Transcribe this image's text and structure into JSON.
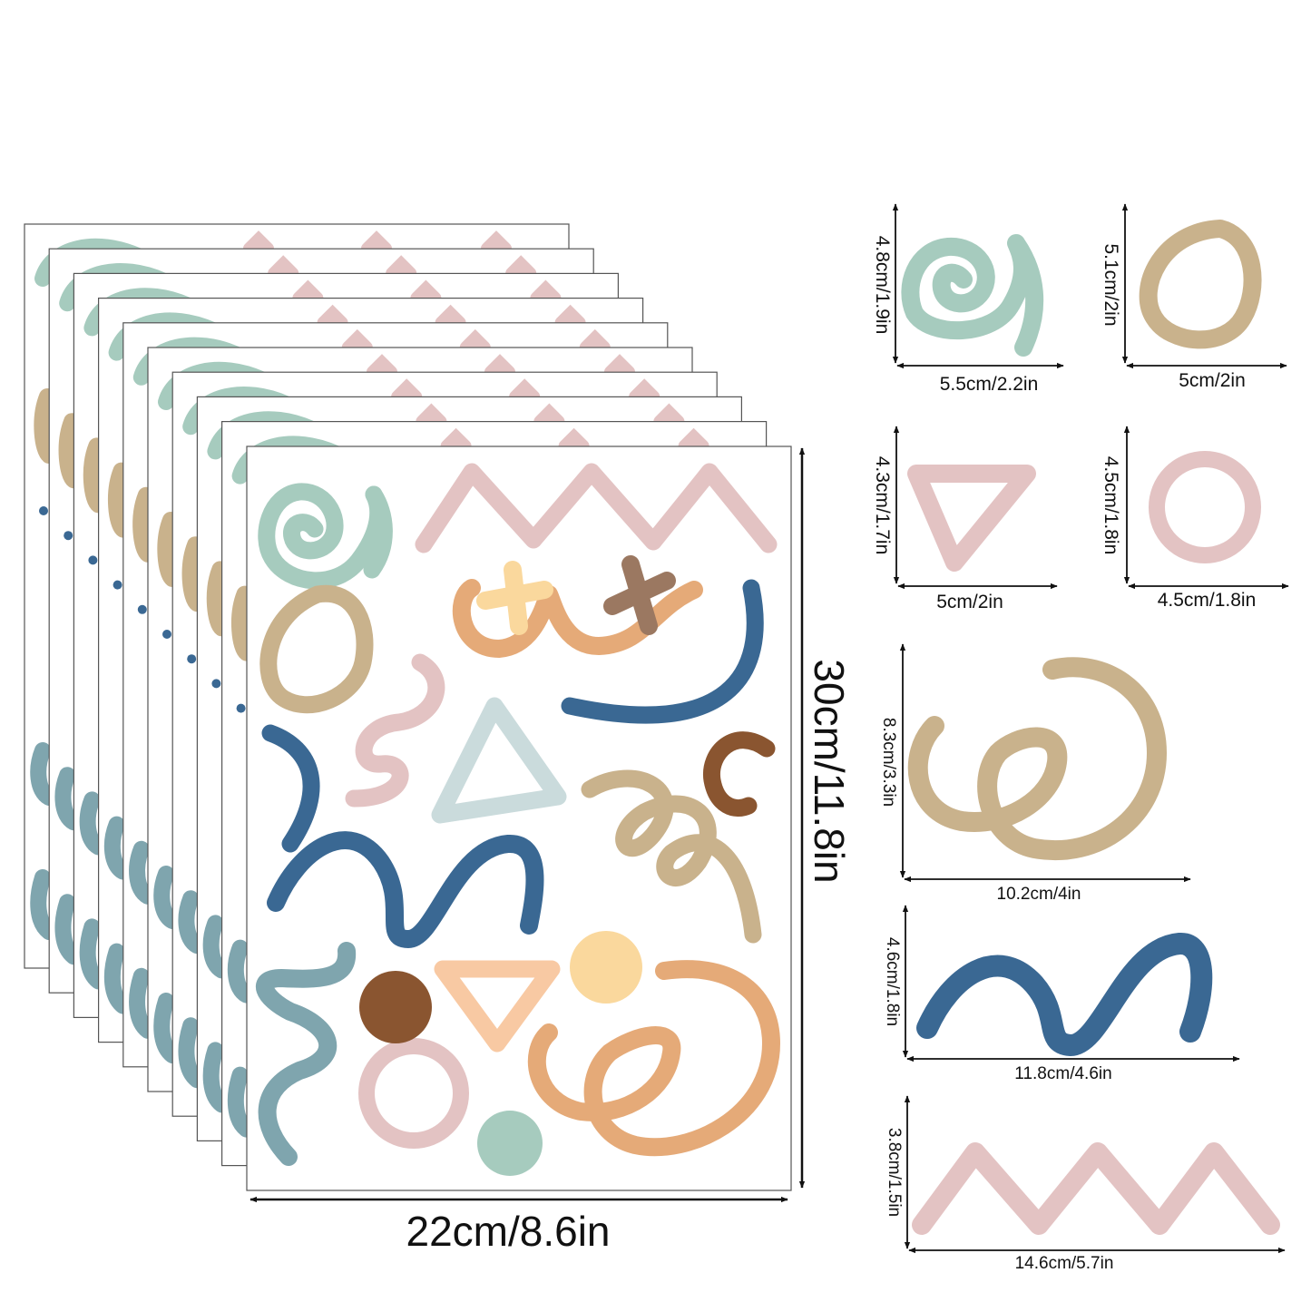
{
  "sheet": {
    "width_label": "22cm/8.6in",
    "height_label": "30cm/11.8in",
    "stacked_sheet_count": 10
  },
  "colors": {
    "sage": "#A6CBBE",
    "tan": "#C9B28C",
    "pink": "#E3C3C3",
    "blue": "#3A6893",
    "orange": "#E5AA78",
    "cream": "#FAD89D",
    "brown": "#8A5530",
    "mocha": "#9B7861",
    "paleblue": "#CADBDC",
    "teal": "#7FA5AE",
    "peach": "#F8C9A3"
  },
  "shapes": [
    {
      "name": "spiral",
      "w_label": "5.5cm/2.2in",
      "h_label": "4.8cm/1.9in"
    },
    {
      "name": "oval",
      "w_label": "5cm/2in",
      "h_label": "5.1cm/2in"
    },
    {
      "name": "triangle",
      "w_label": "5cm/2in",
      "h_label": "4.3cm/1.7in"
    },
    {
      "name": "circle",
      "w_label": "4.5cm/1.8in",
      "h_label": "4.5cm/1.8in"
    },
    {
      "name": "swirl",
      "w_label": "10.2cm/4in",
      "h_label": "8.3cm/3.3in"
    },
    {
      "name": "wave",
      "w_label": "11.8cm/4.6in",
      "h_label": "4.6cm/1.8in"
    },
    {
      "name": "zigzag",
      "w_label": "14.6cm/5.7in",
      "h_label": "3.8cm/1.5in"
    }
  ]
}
